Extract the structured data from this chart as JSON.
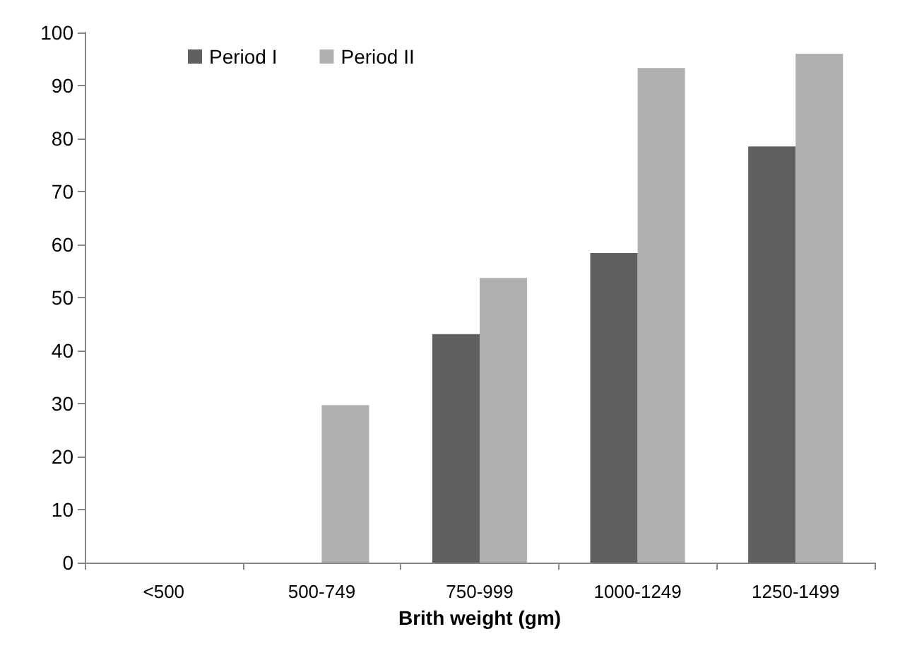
{
  "chart_data": {
    "type": "bar",
    "xlabel": "Brith weight (gm)",
    "categories": [
      "<500",
      "500-749",
      "750-999",
      "1000-1249",
      "1250-1499"
    ],
    "series": [
      {
        "name": "Period I",
        "color": "#606060",
        "values": [
          0,
          0,
          43.1,
          58.4,
          78.5
        ]
      },
      {
        "name": "Period II",
        "color": "#b0b0b0",
        "values": [
          0,
          29.7,
          53.7,
          93.3,
          96
        ]
      }
    ],
    "ylim": [
      0,
      100
    ],
    "yticks": [
      0,
      10,
      20,
      30,
      40,
      50,
      60,
      70,
      80,
      90,
      100
    ],
    "grid": false,
    "legend": "top left"
  }
}
